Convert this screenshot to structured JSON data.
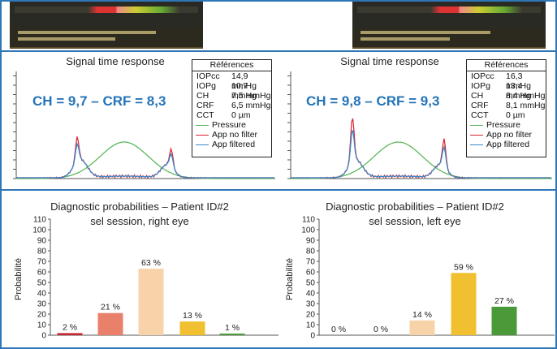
{
  "colors": {
    "frame": "#2f76b7",
    "pressure": "#5cb85c",
    "no_filter": "#d9232e",
    "filtered": "#3a86c8",
    "chcrf": "#2474b8"
  },
  "left_top": {
    "title": "Signal time response",
    "ch_crf": "CH = 9,7 – CRF = 8,3",
    "refs_title": "Références",
    "refs": [
      {
        "k": "IOPcc",
        "v": "14,9 mmHg"
      },
      {
        "k": "IOPg",
        "v": "10,7 mmHg"
      },
      {
        "k": "CH",
        "v": "7,5 mmHg"
      },
      {
        "k": "CRF",
        "v": "6,5 mmHg"
      },
      {
        "k": "CCT",
        "v": "0 µm"
      }
    ],
    "legend": [
      "Pressure",
      "App no filter",
      "App filtered"
    ]
  },
  "right_top": {
    "title": "Signal time response",
    "ch_crf": "CH = 9,8 – CRF = 9,3",
    "refs_title": "Références",
    "refs": [
      {
        "k": "IOPcc",
        "v": "16,3 mmHg"
      },
      {
        "k": "IOPg",
        "v": "13,4 mmHg"
      },
      {
        "k": "CH",
        "v": "8,4 mmHg"
      },
      {
        "k": "CRF",
        "v": "8,1 mmHg"
      },
      {
        "k": "CCT",
        "v": "0 µm"
      }
    ],
    "legend": [
      "Pressure",
      "App no filter",
      "App filtered"
    ]
  },
  "chart_data": [
    {
      "type": "bar",
      "title": "Diagnostic probabilities – Patient ID#2",
      "subtitle": "sel session, right eye",
      "ylabel": "Probabilité",
      "ylim": [
        0,
        110
      ],
      "yticks": [
        "0",
        "10",
        "20",
        "30",
        "40",
        "50",
        "60",
        "70",
        "80",
        "90",
        "100",
        "110"
      ],
      "values": [
        2,
        21,
        63,
        13,
        1
      ],
      "labels": [
        "2 %",
        "21 %",
        "63 %",
        "13 %",
        "1 %"
      ],
      "colors": [
        "#c8262f",
        "#e8806a",
        "#f8d2a8",
        "#f0c030",
        "#4a9a3a"
      ]
    },
    {
      "type": "bar",
      "title": "Diagnostic probabilities – Patient ID#2",
      "subtitle": "sel session, left eye",
      "ylabel": "Probabilité",
      "ylim": [
        0,
        110
      ],
      "yticks": [
        "0",
        "10",
        "20",
        "30",
        "40",
        "50",
        "60",
        "70",
        "80",
        "90",
        "100",
        "110"
      ],
      "values": [
        0,
        0,
        14,
        59,
        27
      ],
      "labels": [
        "0 %",
        "0 %",
        "14 %",
        "59 %",
        "27 %"
      ],
      "colors": [
        "#c8262f",
        "#e8806a",
        "#f8d2a8",
        "#f0c030",
        "#4a9a3a"
      ]
    }
  ]
}
